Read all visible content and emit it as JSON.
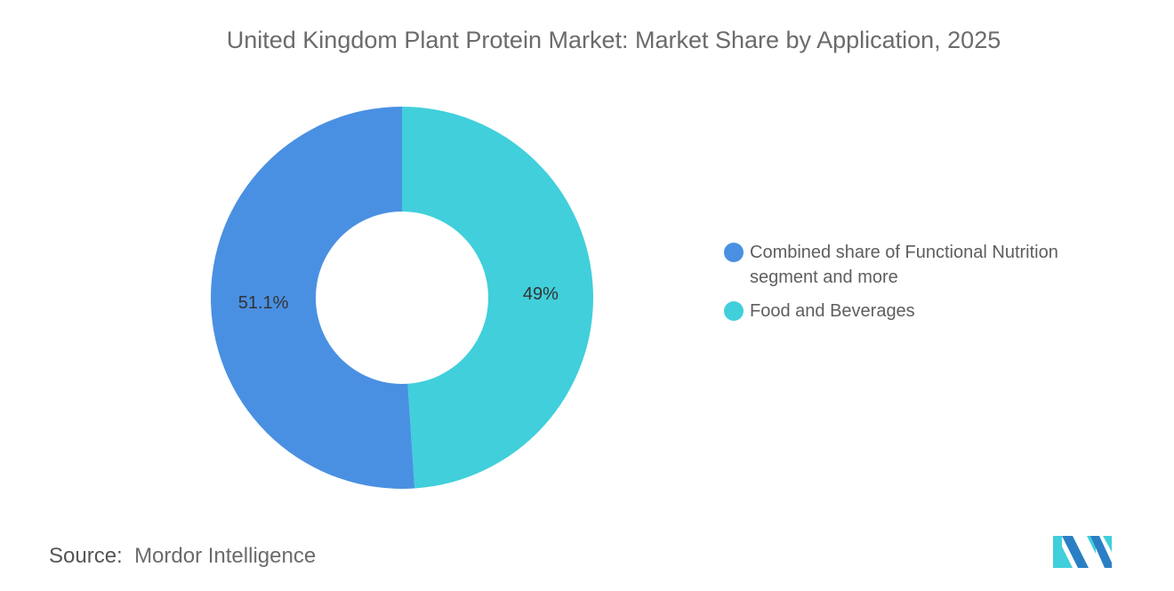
{
  "chart_data": {
    "type": "pie",
    "title": "United Kingdom Plant Protein Market: Market Share by Application, 2025",
    "donut": true,
    "slices": [
      {
        "label": "Food and Beverages",
        "value": 49,
        "data_label": "49%",
        "color": "#40cfdb"
      },
      {
        "label": "Combined share of Functional Nutrition segment and more",
        "value": 51.1,
        "data_label": "51.1%",
        "color": "#4a90e2"
      }
    ],
    "legend": {
      "placement": "right",
      "items": [
        {
          "label": "Combined share of Functional Nutrition segment and more",
          "color": "#4a90e2"
        },
        {
          "label": "Food and Beverages",
          "color": "#40cfdb"
        }
      ]
    }
  },
  "source": {
    "label": "Source:",
    "value": "Mordor Intelligence"
  },
  "logo": {
    "text": "Mordor Intelligence"
  }
}
